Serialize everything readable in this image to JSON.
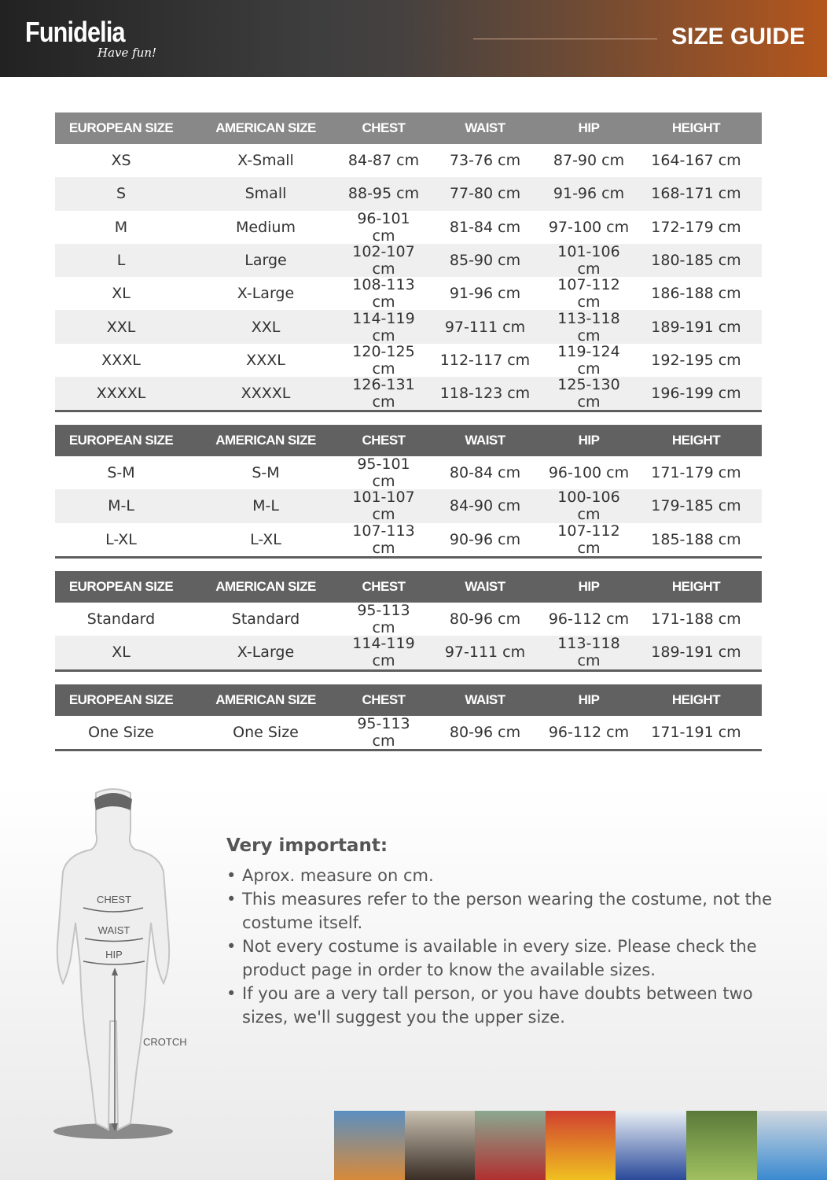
{
  "header": {
    "logo": "Funidelia",
    "tagline": "Have fun!",
    "title": "SIZE GUIDE"
  },
  "columns": [
    "EUROPEAN SIZE",
    "AMERICAN SIZE",
    "CHEST",
    "WAIST",
    "HIP",
    "HEIGHT"
  ],
  "tables": [
    {
      "rows": [
        [
          "XS",
          "X-Small",
          "84-87 cm",
          "73-76 cm",
          "87-90 cm",
          "164-167 cm"
        ],
        [
          "S",
          "Small",
          "88-95 cm",
          "77-80 cm",
          "91-96 cm",
          "168-171 cm"
        ],
        [
          "M",
          "Medium",
          "96-101 cm",
          "81-84 cm",
          "97-100 cm",
          "172-179 cm"
        ],
        [
          "L",
          "Large",
          "102-107 cm",
          "85-90 cm",
          "101-106 cm",
          "180-185 cm"
        ],
        [
          "XL",
          "X-Large",
          "108-113 cm",
          "91-96 cm",
          "107-112 cm",
          "186-188 cm"
        ],
        [
          "XXL",
          "XXL",
          "114-119 cm",
          "97-111 cm",
          "113-118 cm",
          "189-191 cm"
        ],
        [
          "XXXL",
          "XXXL",
          "120-125 cm",
          "112-117 cm",
          "119-124 cm",
          "192-195 cm"
        ],
        [
          "XXXXL",
          "XXXXL",
          "126-131 cm",
          "118-123 cm",
          "125-130 cm",
          "196-199 cm"
        ]
      ]
    },
    {
      "rows": [
        [
          "S-M",
          "S-M",
          "95-101 cm",
          "80-84 cm",
          "96-100 cm",
          "171-179 cm"
        ],
        [
          "M-L",
          "M-L",
          "101-107 cm",
          "84-90 cm",
          "100-106 cm",
          "179-185 cm"
        ],
        [
          "L-XL",
          "L-XL",
          "107-113 cm",
          "90-96 cm",
          "107-112 cm",
          "185-188 cm"
        ]
      ]
    },
    {
      "rows": [
        [
          "Standard",
          "Standard",
          "95-113 cm",
          "80-96 cm",
          "96-112 cm",
          "171-188 cm"
        ],
        [
          "XL",
          "X-Large",
          "114-119 cm",
          "97-111 cm",
          "113-118 cm",
          "189-191 cm"
        ]
      ]
    },
    {
      "rows": [
        [
          "One Size",
          "One Size",
          "95-113 cm",
          "80-96 cm",
          "96-112 cm",
          "171-191 cm"
        ]
      ]
    }
  ],
  "figure": {
    "labels": {
      "chest": "CHEST",
      "waist": "WAIST",
      "hip": "HIP",
      "crotch": "CROTCH"
    }
  },
  "notes": {
    "title": "Very important:",
    "items": [
      "Aprox. measure on cm.",
      "This measures refer to the person wearing the costume, not the costume itself.",
      "Not every costume is available in every size. Please check the product page in order to know the available sizes.",
      "If you are a very tall person, or you have doubts between two sizes, we'll suggest you the upper size."
    ]
  },
  "colors": {
    "header_gray": "#888888",
    "header_dark": "#616161",
    "brand_orange": "#b4561c"
  }
}
